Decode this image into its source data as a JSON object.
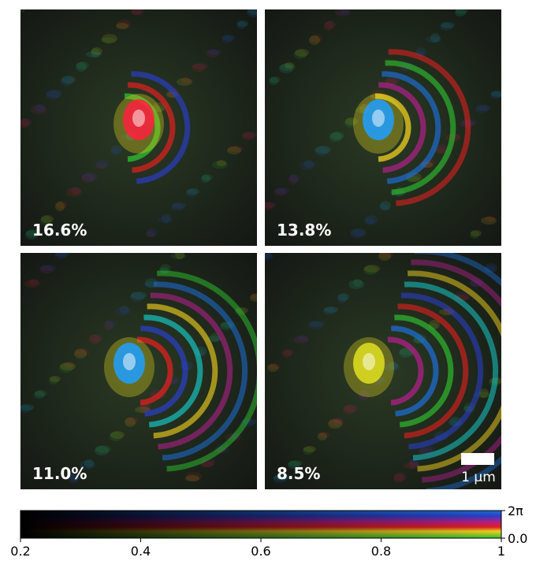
{
  "chart_data": {
    "type": "image-grid",
    "panels": [
      {
        "label": "16.6%"
      },
      {
        "label": "13.8%"
      },
      {
        "label": "11.0%"
      },
      {
        "label": "8.5%"
      }
    ],
    "scale_bar": "1 μm",
    "colorbar": {
      "xlim": [
        0.2,
        1.0
      ],
      "xticks": [
        0.2,
        0.4,
        0.6,
        0.8,
        1.0
      ],
      "ylim": [
        0,
        6.283185307
      ],
      "yticks": [
        {
          "value": 0,
          "label": "0.0"
        },
        {
          "value": 6.283185307,
          "label": "2π"
        }
      ]
    }
  }
}
